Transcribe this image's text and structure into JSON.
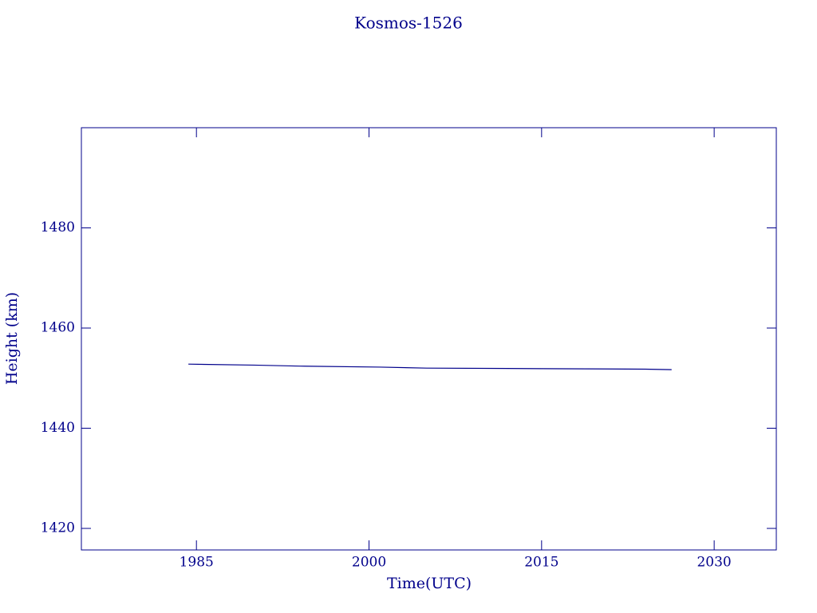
{
  "chart_data": {
    "type": "line",
    "title": "Kosmos-1526",
    "x_label": "Time(UTC)",
    "y_label": "Height (km)",
    "x": [
      1984.3,
      1990,
      1994,
      2001,
      2005,
      2015,
      2024,
      2026.3
    ],
    "series": [
      {
        "name": "Kosmos-1526",
        "color": "#00008b",
        "values": [
          1452.8,
          1452.6,
          1452.4,
          1452.2,
          1452.0,
          1451.9,
          1451.8,
          1451.7
        ]
      }
    ],
    "xlim": [
      1975,
      2035.4
    ],
    "xticks": [
      1985,
      2000,
      2015,
      2030
    ],
    "ylim": [
      1415.7,
      1500
    ],
    "yticks": [
      1420,
      1440,
      1460,
      1480
    ],
    "grid": false
  }
}
